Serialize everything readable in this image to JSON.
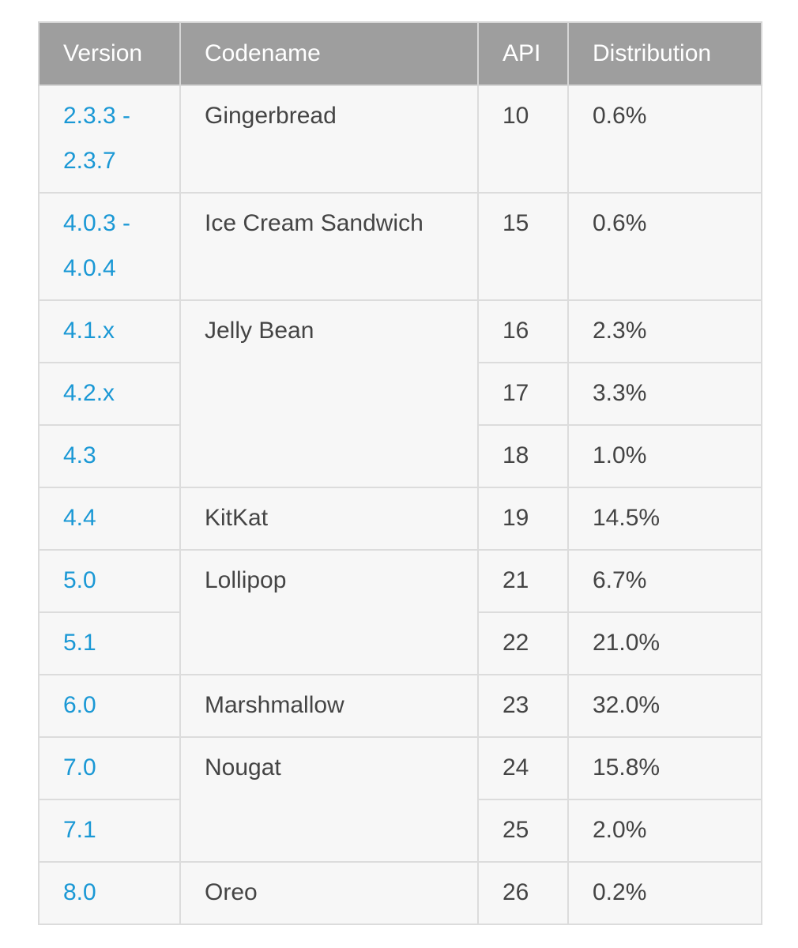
{
  "table": {
    "headers": {
      "version": "Version",
      "codename": "Codename",
      "api": "API",
      "distribution": "Distribution"
    },
    "rows": [
      {
        "version_lines": [
          "2.3.3 -",
          "2.3.7"
        ],
        "codename": "Gingerbread",
        "api": "10",
        "distribution": "0.6%"
      },
      {
        "version_lines": [
          "4.0.3 -",
          "4.0.4"
        ],
        "codename": "Ice Cream Sandwich",
        "api": "15",
        "distribution": "0.6%"
      },
      {
        "version": "4.1.x",
        "codename": "Jelly Bean",
        "api": "16",
        "distribution": "2.3%"
      },
      {
        "version": "4.2.x",
        "api": "17",
        "distribution": "3.3%"
      },
      {
        "version": "4.3",
        "api": "18",
        "distribution": "1.0%"
      },
      {
        "version": "4.4",
        "codename": "KitKat",
        "api": "19",
        "distribution": "14.5%"
      },
      {
        "version": "5.0",
        "codename": "Lollipop",
        "api": "21",
        "distribution": "6.7%"
      },
      {
        "version": "5.1",
        "api": "22",
        "distribution": "21.0%"
      },
      {
        "version": "6.0",
        "codename": "Marshmallow",
        "api": "23",
        "distribution": "32.0%"
      },
      {
        "version": "7.0",
        "codename": "Nougat",
        "api": "24",
        "distribution": "15.8%"
      },
      {
        "version": "7.1",
        "api": "25",
        "distribution": "2.0%"
      },
      {
        "version": "8.0",
        "codename": "Oreo",
        "api": "26",
        "distribution": "0.2%"
      }
    ]
  },
  "colors": {
    "header_bg": "#9e9e9e",
    "row_bg": "#f7f7f7",
    "link": "#1a98d5",
    "text": "#444444"
  }
}
